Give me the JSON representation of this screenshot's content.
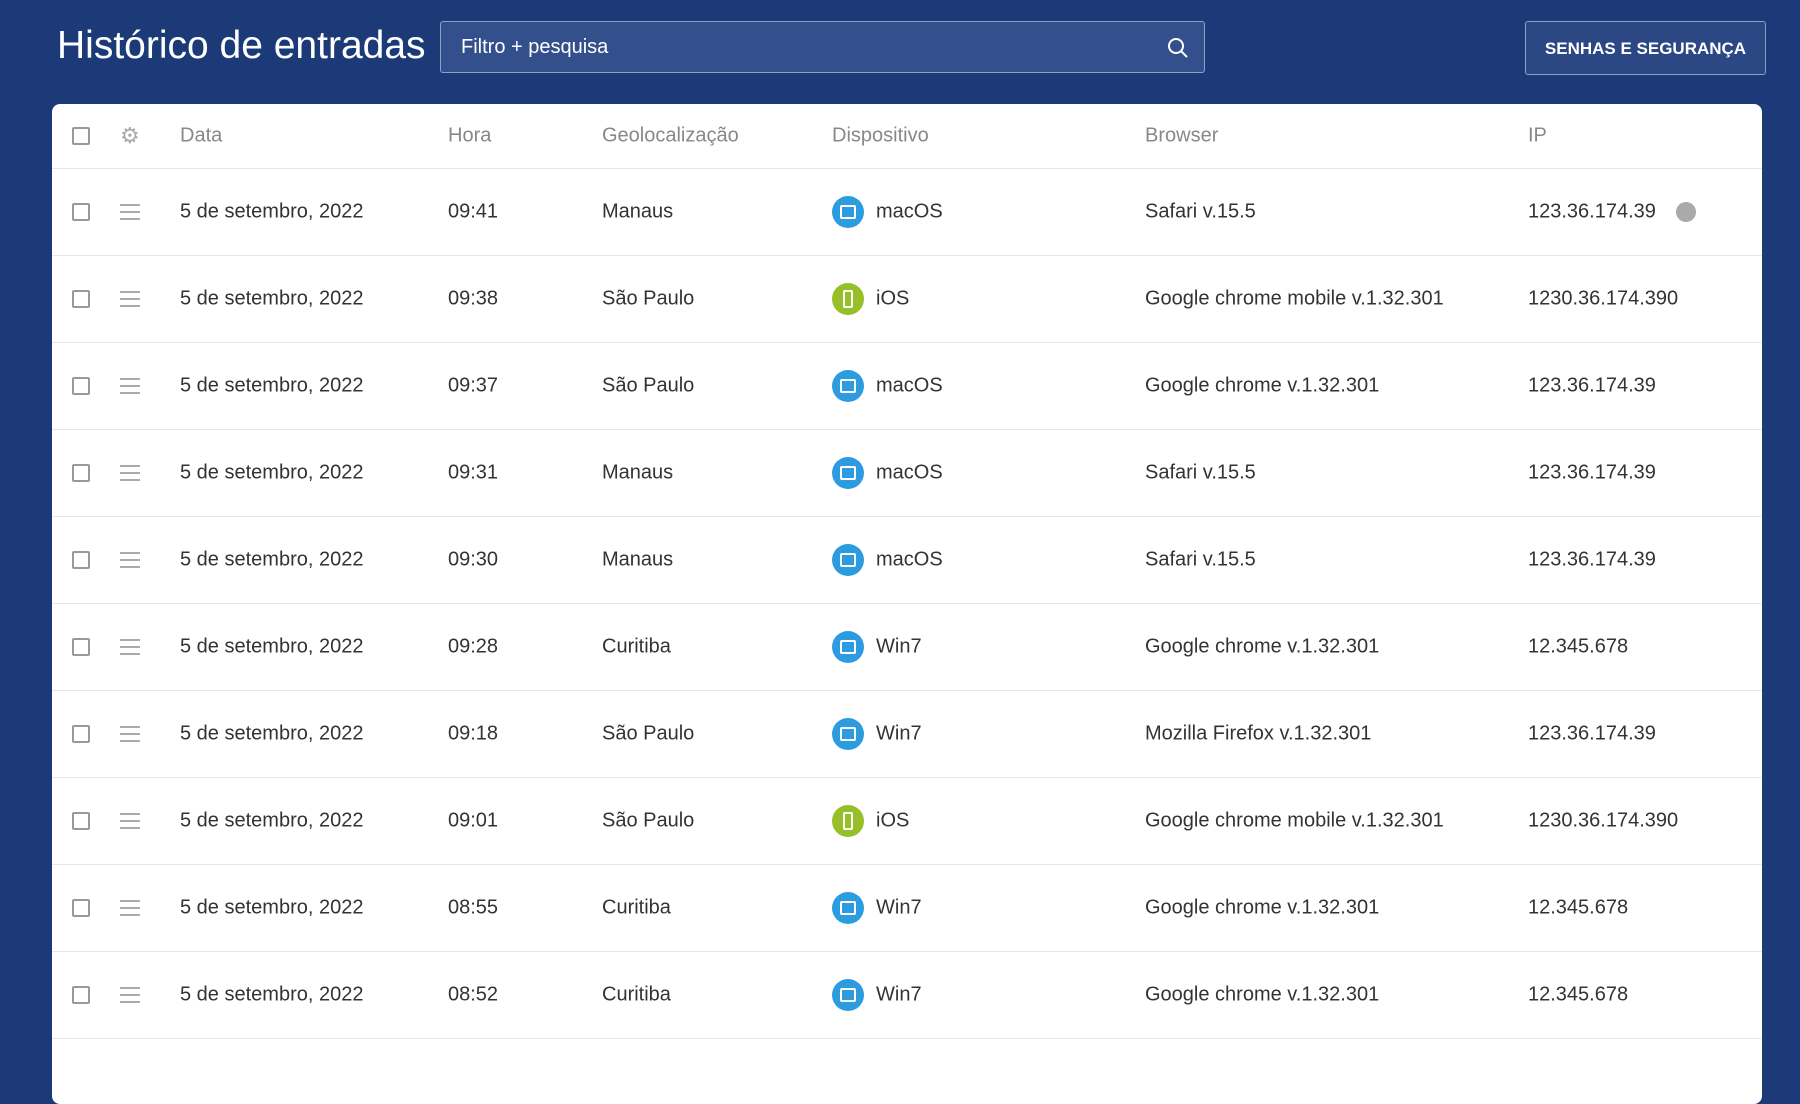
{
  "header": {
    "title": "Histórico de entradas",
    "search_placeholder": "Filtro + pesquisa",
    "button": "SENHAS E SEGURANÇA"
  },
  "table": {
    "columns": [
      "Data",
      "Hora",
      "Geolocalização",
      "Dispositivo",
      "Browser",
      "IP"
    ],
    "rows": [
      [
        "5 de setembro, 2022",
        "09:41",
        "Manaus",
        "macOS",
        "Safari v.15.5",
        "123.36.174.39"
      ],
      [
        "5 de setembro, 2022",
        "09:38",
        "São Paulo",
        "iOS",
        "Google chrome mobile  v.1.32.301",
        "1230.36.174.390"
      ],
      [
        "5 de setembro, 2022",
        "09:37",
        "São Paulo",
        "macOS",
        "Google chrome v.1.32.301",
        "123.36.174.39"
      ],
      [
        "5 de setembro, 2022",
        "09:31",
        "Manaus",
        "macOS",
        "Safari v.15.5",
        "123.36.174.39"
      ],
      [
        "5 de setembro, 2022",
        "09:30",
        "Manaus",
        "macOS",
        "Safari v.15.5",
        "123.36.174.39"
      ],
      [
        "5 de setembro, 2022",
        "09:28",
        "Curitiba",
        "Win7",
        "Google chrome v.1.32.301",
        "12.345.678"
      ],
      [
        "5 de setembro, 2022",
        "09:18",
        "São Paulo",
        "Win7",
        "Mozilla Firefox  v.1.32.301",
        "123.36.174.39"
      ],
      [
        "5 de setembro, 2022",
        "09:01",
        "São Paulo",
        "iOS",
        "Google chrome mobile  v.1.32.301",
        "1230.36.174.390"
      ],
      [
        "5 de setembro, 2022",
        "08:55",
        "Curitiba",
        "Win7",
        "Google chrome v.1.32.301",
        "12.345.678"
      ],
      [
        "5 de setembro, 2022",
        "08:52",
        "Curitiba",
        "Win7",
        "Google chrome v.1.32.301",
        "12.345.678"
      ]
    ]
  }
}
